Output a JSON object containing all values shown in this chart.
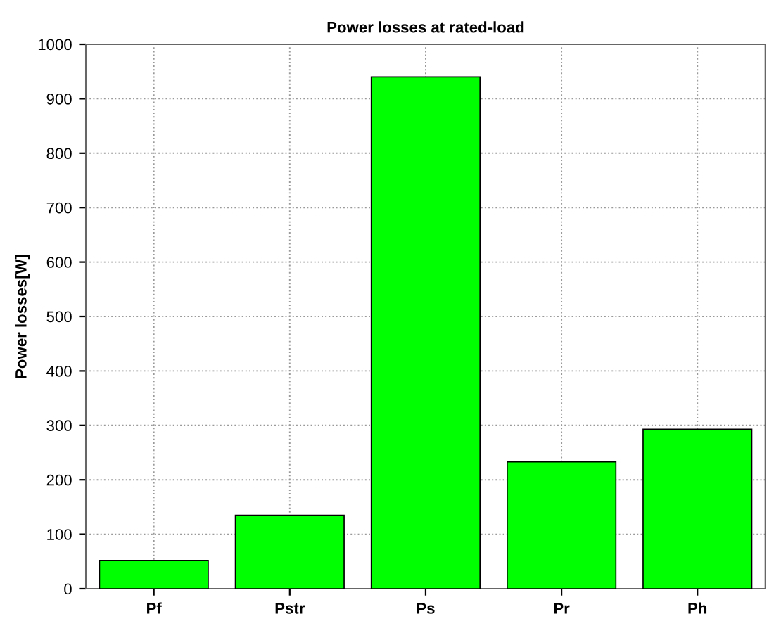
{
  "chart_data": {
    "type": "bar",
    "title": "Power losses at rated-load",
    "ylabel": "Power losses[W]",
    "categories": [
      "Pf",
      "Pstr",
      "Ps",
      "Pr",
      "Ph"
    ],
    "values": [
      52,
      135,
      940,
      233,
      293
    ],
    "color": "#00ff00",
    "ylim": [
      0,
      1000
    ],
    "yticks": [
      0,
      100,
      200,
      300,
      400,
      500,
      600,
      700,
      800,
      900,
      1000
    ],
    "grid": true
  }
}
